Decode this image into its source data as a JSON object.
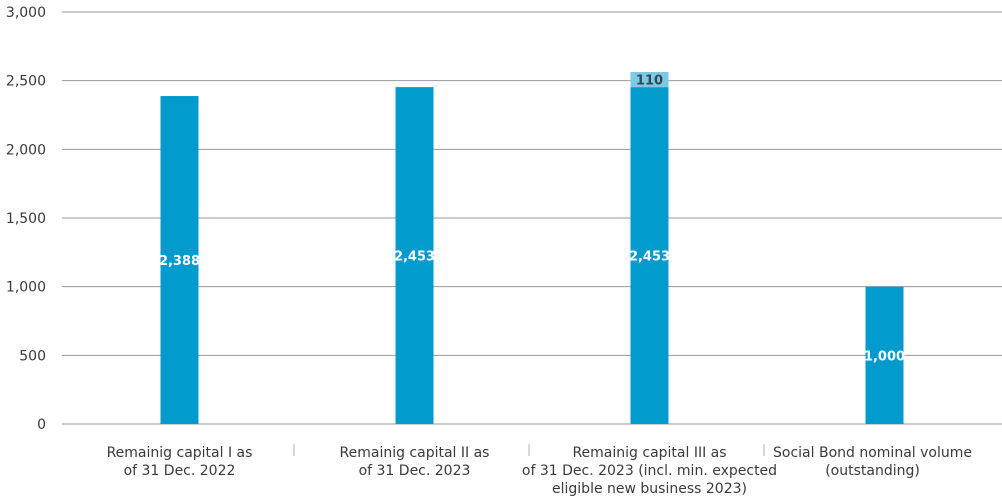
{
  "chart_data": {
    "type": "bar",
    "stacked": true,
    "categories": [
      [
        "Remainig capital I as",
        "of 31 Dec. 2022"
      ],
      [
        "Remainig capital II as",
        "of 31 Dec. 2023"
      ],
      [
        "Remainig capital III as",
        "of 31 Dec. 2023 (incl. min. expected",
        "eligible new business 2023)"
      ],
      [
        "Social Bond nominal volume",
        "(outstanding)"
      ]
    ],
    "series": [
      {
        "values": [
          2388,
          2453,
          2453,
          1000
        ],
        "labels": [
          "2,388",
          "2,453",
          "2,453",
          "1,000"
        ],
        "color": "#009ACD"
      },
      {
        "values": [
          0,
          0,
          110,
          0
        ],
        "labels": [
          "",
          "",
          "110",
          ""
        ],
        "color": "#7DC8E3"
      }
    ],
    "ylim": [
      0,
      3000
    ],
    "yticks": [
      0,
      500,
      1000,
      1500,
      2000,
      2500,
      3000
    ],
    "ytick_labels": [
      "0",
      "500",
      "1,000",
      "1,500",
      "2,000",
      "2,500",
      "3,000"
    ],
    "grid": true,
    "title": "",
    "xlabel": "",
    "ylabel": ""
  },
  "colors": {
    "grid": "#9a9a9a",
    "axis_text": "#3a3a3a",
    "separator": "#b0b0b0"
  }
}
